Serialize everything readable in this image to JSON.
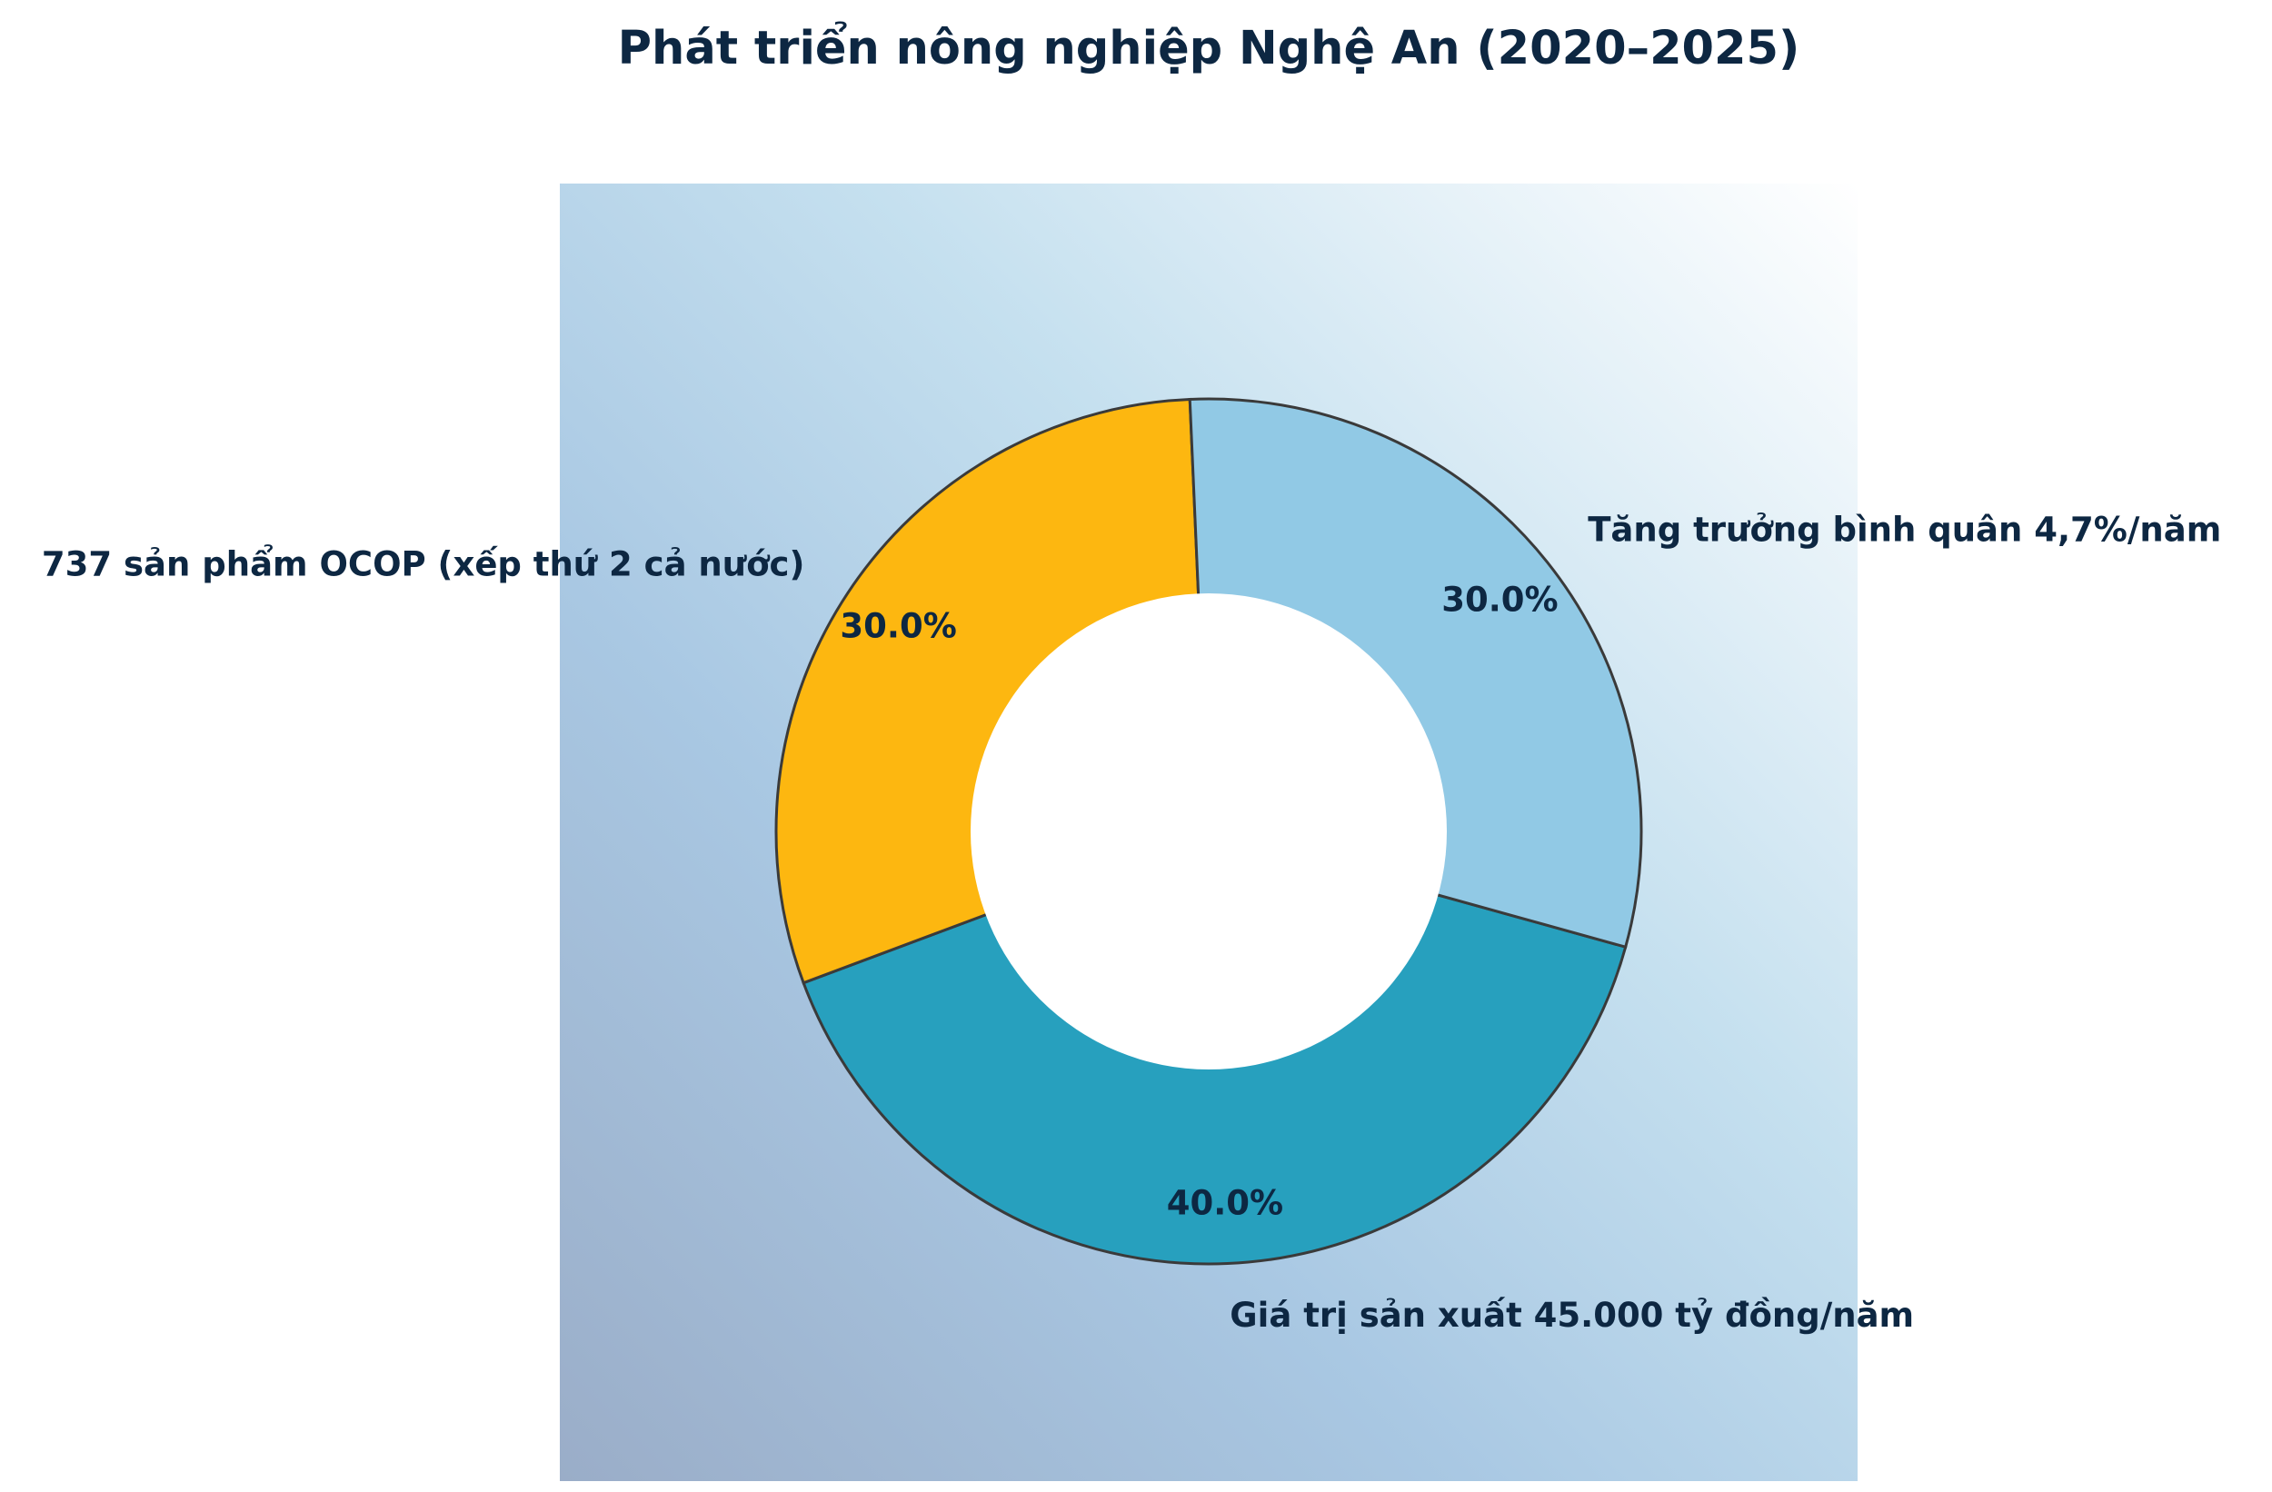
{
  "chart_data": {
    "type": "pie",
    "title": "Phát triển nông nghiệp Nghệ An (2020–2025)",
    "slices": [
      {
        "label": "Giá trị sản xuất 45.000 tỷ đồng/năm",
        "value": 40.0,
        "pct_label": "40.0%",
        "color": "#27a0be"
      },
      {
        "label": "737 sản phẩm OCOP (xếp thứ 2 cả nước)",
        "value": 30.0,
        "pct_label": "30.0%",
        "color": "#fdb710"
      },
      {
        "label": "Tăng trưởng bình quân 4,7%/năm",
        "value": 30.0,
        "pct_label": "30.0%",
        "color": "#91c9e5"
      }
    ],
    "donut": true,
    "edge_color": "#3a3a3a",
    "background_gradient": [
      "#9aadc8",
      "#a9c8e3",
      "#c5e0ef",
      "#ffffff"
    ]
  }
}
